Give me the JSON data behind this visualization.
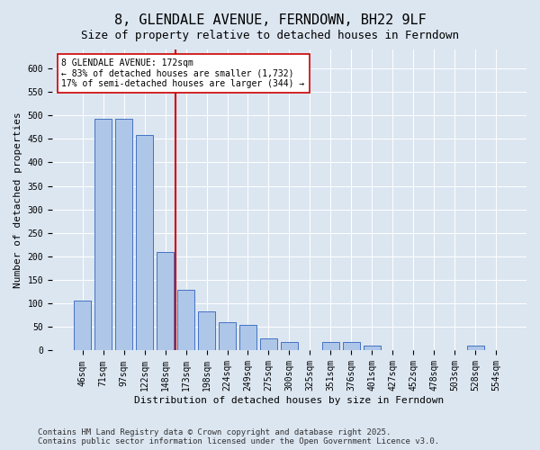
{
  "title": "8, GLENDALE AVENUE, FERNDOWN, BH22 9LF",
  "subtitle": "Size of property relative to detached houses in Ferndown",
  "xlabel": "Distribution of detached houses by size in Ferndown",
  "ylabel": "Number of detached properties",
  "footer_line1": "Contains HM Land Registry data © Crown copyright and database right 2025.",
  "footer_line2": "Contains public sector information licensed under the Open Government Licence v3.0.",
  "categories": [
    "46sqm",
    "71sqm",
    "97sqm",
    "122sqm",
    "148sqm",
    "173sqm",
    "198sqm",
    "224sqm",
    "249sqm",
    "275sqm",
    "300sqm",
    "325sqm",
    "351sqm",
    "376sqm",
    "401sqm",
    "427sqm",
    "452sqm",
    "478sqm",
    "503sqm",
    "528sqm",
    "554sqm"
  ],
  "values": [
    107,
    492,
    492,
    458,
    210,
    130,
    83,
    60,
    55,
    25,
    18,
    0,
    18,
    18,
    10,
    0,
    0,
    0,
    0,
    10,
    0
  ],
  "bar_color": "#aec6e8",
  "bar_edge_color": "#4472c4",
  "background_color": "#dce6f1",
  "plot_bg_color": "#dce6f1",
  "grid_color": "#ffffff",
  "vline_x": 4.5,
  "vline_color": "#cc0000",
  "annotation_text": "8 GLENDALE AVENUE: 172sqm\n← 83% of detached houses are smaller (1,732)\n17% of semi-detached houses are larger (344) →",
  "annotation_box_color": "#ffffff",
  "annotation_box_edge": "#cc0000",
  "ylim": [
    0,
    640
  ],
  "yticks": [
    0,
    50,
    100,
    150,
    200,
    250,
    300,
    350,
    400,
    450,
    500,
    550,
    600
  ],
  "title_fontsize": 11,
  "subtitle_fontsize": 9,
  "axis_label_fontsize": 8,
  "tick_fontsize": 7,
  "annotation_fontsize": 7,
  "footer_fontsize": 6.5
}
